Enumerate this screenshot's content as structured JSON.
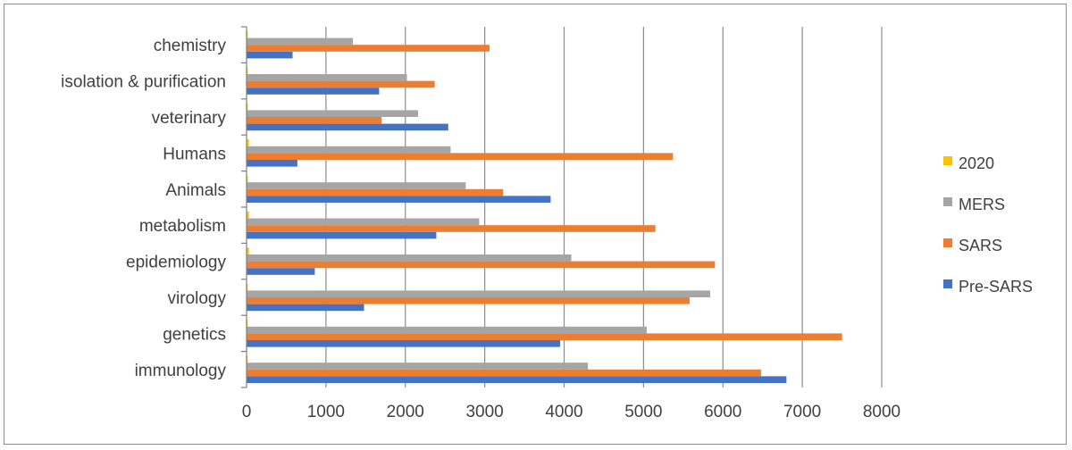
{
  "chart_data": {
    "type": "bar",
    "orientation": "horizontal",
    "categories": [
      "immunology",
      "genetics",
      "virology",
      "epidemiology",
      "metabolism",
      "Animals",
      "Humans",
      "veterinary",
      "isolation & purification",
      "chemistry"
    ],
    "series": [
      {
        "name": "Pre-SARS",
        "color": "#4472C4",
        "values": [
          6800,
          3950,
          1480,
          860,
          2390,
          3830,
          640,
          2540,
          1670,
          580
        ]
      },
      {
        "name": "SARS",
        "color": "#ED7D31",
        "values": [
          6480,
          7500,
          5580,
          5900,
          5150,
          3230,
          5370,
          1700,
          2370,
          3060
        ]
      },
      {
        "name": "MERS",
        "color": "#A5A5A5",
        "values": [
          4300,
          5040,
          5840,
          4090,
          2930,
          2760,
          2570,
          2160,
          2020,
          1340
        ]
      },
      {
        "name": "2020",
        "color": "#FFC000",
        "values": [
          15,
          15,
          15,
          30,
          30,
          15,
          30,
          15,
          15,
          15
        ]
      }
    ],
    "xlim": [
      0,
      8000
    ],
    "xticks": [
      "0",
      "1000",
      "2000",
      "3000",
      "4000",
      "5000",
      "6000",
      "7000",
      "8000"
    ],
    "legend_order": [
      "2020",
      "MERS",
      "SARS",
      "Pre-SARS"
    ],
    "legend_position": "right",
    "grid": "vertical",
    "title": "",
    "xlabel": "",
    "ylabel": ""
  }
}
